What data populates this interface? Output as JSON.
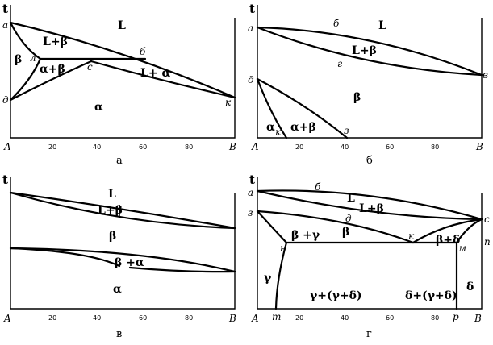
{
  "panels": {
    "a": {
      "axis_t": "t",
      "left_comp": "A",
      "right_comp": "B",
      "ticks": [
        "20",
        "40",
        "60",
        "80"
      ],
      "caption": "а",
      "regions": {
        "L": "L",
        "L_beta": "L+β",
        "beta": "β",
        "alpha_beta": "α+β",
        "L_alpha": "L+ α",
        "alpha": "α"
      },
      "points": {
        "a": "a",
        "l": "л",
        "b": "б",
        "c": "с",
        "d": "д",
        "k": "к"
      }
    },
    "b": {
      "axis_t": "t",
      "left_comp": "A",
      "right_comp": "B",
      "ticks": [
        "20",
        "40",
        "60",
        "80"
      ],
      "caption": "б",
      "regions": {
        "L": "L",
        "L_beta": "L+β",
        "beta": "β",
        "alpha": "α",
        "alpha_beta": "α+β"
      },
      "points": {
        "a": "a",
        "b": "б",
        "g": "г",
        "v": "в",
        "d": "д",
        "k": "к",
        "z": "з"
      }
    },
    "c": {
      "axis_t": "t",
      "left_comp": "A",
      "right_comp": "B",
      "ticks": [
        "20",
        "40",
        "60",
        "80"
      ],
      "caption": "в",
      "regions": {
        "L": "L",
        "L_beta": "L+β",
        "beta": "β",
        "beta_alpha": "β +α",
        "alpha": "α"
      }
    },
    "d": {
      "axis_t": "t",
      "left_comp": "A",
      "right_comp": "B",
      "ticks": [
        "20",
        "40",
        "60",
        "80"
      ],
      "caption": "г",
      "regions": {
        "L": "L",
        "L_beta": "L+β",
        "beta": "β",
        "beta_gamma": "β +γ",
        "beta_delta": "β+δ",
        "gamma": "γ",
        "gamma_mix": "γ+(γ+δ)",
        "delta_mix": "δ+(γ+δ)",
        "delta": "δ"
      },
      "points": {
        "a": "a",
        "b": "б",
        "z": "з",
        "d": "д",
        "c": "с",
        "n_right": "n",
        "n": "н",
        "k": "к",
        "m": "м",
        "m_low": "m",
        "p": "p"
      }
    }
  }
}
